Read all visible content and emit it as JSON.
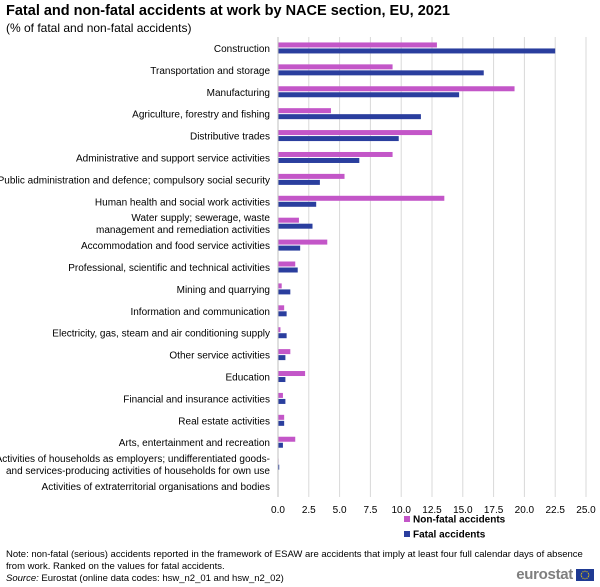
{
  "header": {
    "title": "Fatal and non-fatal accidents at work by NACE section, EU, 2021",
    "subtitle": "(% of fatal and non-fatal accidents)"
  },
  "footer": {
    "note": "Note: non-fatal (serious) accidents reported in the framework of ESAW are accidents that imply at least four full calendar days of absence from work. Ranked on the values for fatal accidents.",
    "source_label": "Source:",
    "source_text": " Eurostat (online data codes: hsw_n2_01 and hsw_n2_02)",
    "logo_text": "eurostat"
  },
  "chart_data": {
    "type": "bar",
    "orientation": "horizontal",
    "title": "Fatal and non-fatal accidents at work by NACE section, EU, 2021",
    "subtitle": "(% of fatal and non-fatal accidents)",
    "categories": [
      [
        "Construction"
      ],
      [
        "Transportation and storage"
      ],
      [
        "Manufacturing"
      ],
      [
        "Agriculture, forestry and fishing"
      ],
      [
        "Distributive trades"
      ],
      [
        "Administrative and support service activities"
      ],
      [
        "Public administration and defence; compulsory social security"
      ],
      [
        "Human health and social work activities"
      ],
      [
        "Water supply; sewerage, waste",
        "management and remediation activities"
      ],
      [
        "Accommodation and food service activities"
      ],
      [
        "Professional, scientific and technical activities"
      ],
      [
        "Mining and quarrying"
      ],
      [
        "Information and communication"
      ],
      [
        "Electricity, gas, steam and air conditioning supply"
      ],
      [
        "Other service activities"
      ],
      [
        "Education"
      ],
      [
        "Financial and insurance activities"
      ],
      [
        "Real estate activities"
      ],
      [
        "Arts, entertainment and recreation"
      ],
      [
        "Activities of households as employers; undifferentiated goods-",
        "and services-producing activities of households for own use"
      ],
      [
        "Activities of extraterritorial organisations and bodies"
      ]
    ],
    "series": [
      {
        "name": "Non-fatal accidents",
        "color": "#c356c8",
        "values": [
          12.9,
          9.3,
          19.2,
          4.3,
          12.5,
          9.3,
          5.4,
          13.5,
          1.7,
          4.0,
          1.4,
          0.3,
          0.5,
          0.2,
          1.0,
          2.2,
          0.4,
          0.5,
          1.4,
          0.05,
          0.0
        ]
      },
      {
        "name": "Fatal accidents",
        "color": "#2a3e9e",
        "values": [
          22.5,
          16.7,
          14.7,
          11.6,
          9.8,
          6.6,
          3.4,
          3.1,
          2.8,
          1.8,
          1.6,
          1.0,
          0.7,
          0.7,
          0.6,
          0.6,
          0.6,
          0.5,
          0.4,
          0.1,
          0.0
        ]
      }
    ],
    "xlim": [
      0,
      25
    ],
    "xticks": [
      "0.0",
      "2.5",
      "5.0",
      "7.5",
      "10.0",
      "12.5",
      "15.0",
      "17.5",
      "20.0",
      "22.5",
      "25.0"
    ],
    "grid": "vertical",
    "legend_position": "bottom"
  }
}
